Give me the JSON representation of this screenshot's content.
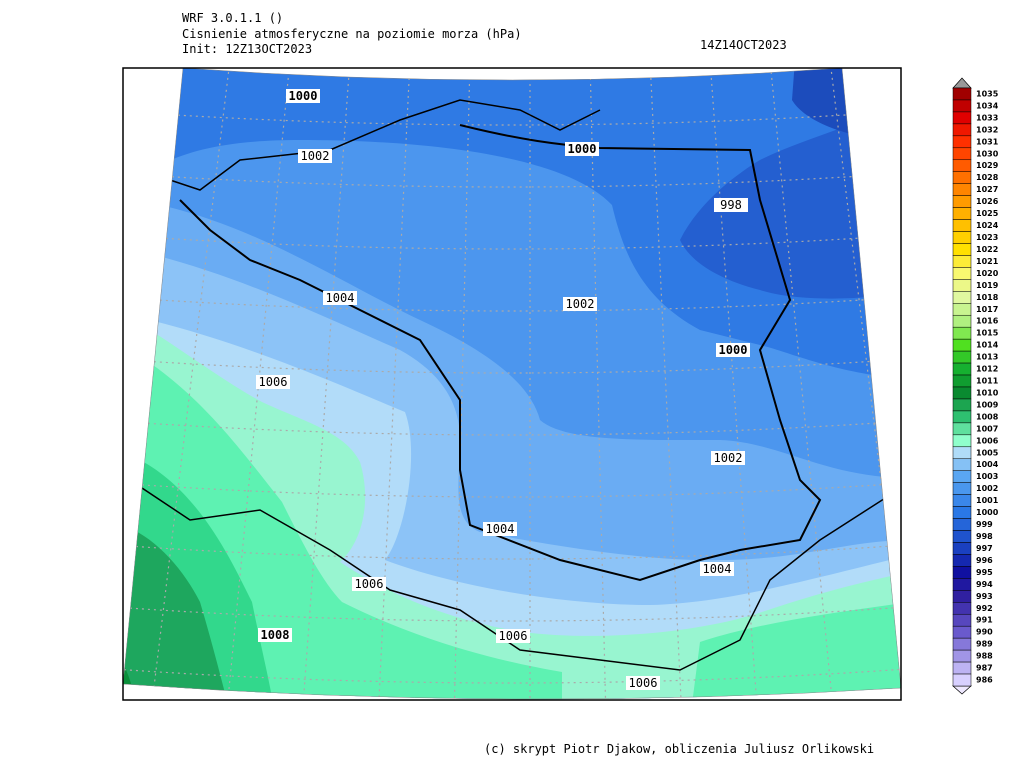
{
  "header": {
    "lines": [
      "WRF 3.0.1.1 ()",
      "Cisnienie atmosferyczne na poziomie morza (hPa)",
      "Init: 12Z13OCT2023"
    ],
    "valid_time": "14Z14OCT2023"
  },
  "map": {
    "contour_labels": [
      1000,
      1002,
      1000,
      998,
      1004,
      1002,
      1000,
      1006,
      1002,
      1004,
      1004,
      1006,
      1008,
      1006,
      1006
    ]
  },
  "colorbar": {
    "levels": [
      1035,
      1034,
      1033,
      1032,
      1031,
      1030,
      1029,
      1028,
      1027,
      1026,
      1025,
      1024,
      1023,
      1022,
      1021,
      1020,
      1019,
      1018,
      1017,
      1016,
      1015,
      1014,
      1013,
      1012,
      1011,
      1010,
      1009,
      1008,
      1007,
      1006,
      1005,
      1004,
      1003,
      1002,
      1001,
      1000,
      999,
      998,
      997,
      996,
      995,
      994,
      993,
      992,
      991,
      990,
      989,
      988,
      987,
      986
    ]
  },
  "footer": "(c) skrypt Piotr Djakow, obliczenia Juliusz Orlikowski"
}
